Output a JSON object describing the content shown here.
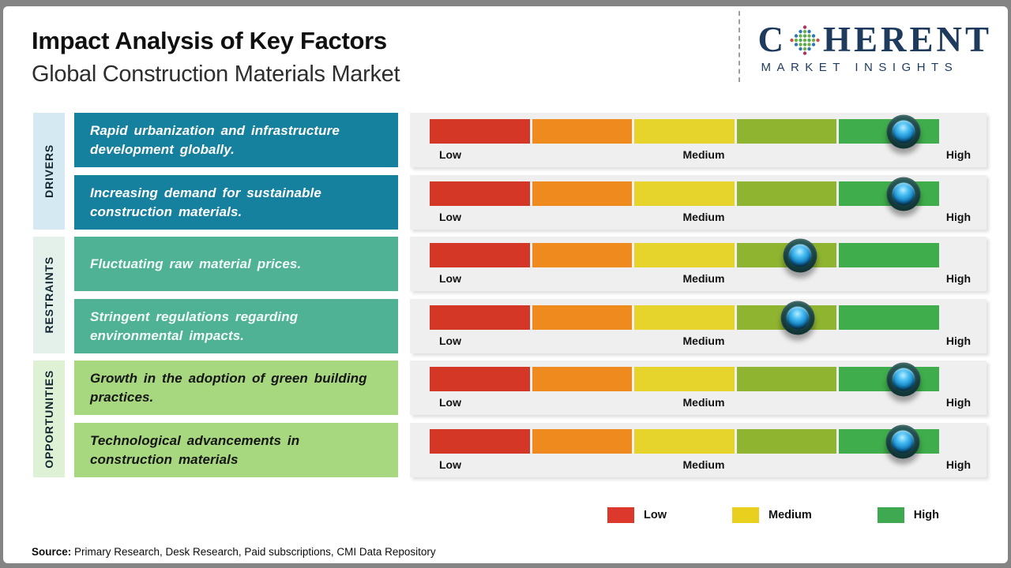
{
  "header": {
    "title": "Impact Analysis of Key Factors",
    "subtitle": "Global Construction Materials Market"
  },
  "logo": {
    "brand_prefix": "C",
    "brand_suffix": "HERENT",
    "tagline": "MARKET INSIGHTS",
    "brand_color": "#1e3a5c"
  },
  "groups": [
    {
      "label": "DRIVERS",
      "box_color": "#16809f",
      "strip_color": "#d5e9f3",
      "text_color": "#ffffff",
      "factors": [
        "Rapid urbanization and infrastructure development globally.",
        "Increasing demand for sustainable construction materials."
      ]
    },
    {
      "label": "RESTRAINTS",
      "box_color": "#4fb294",
      "strip_color": "#e3f1ea",
      "text_color": "#f2faf7",
      "factors": [
        "Fluctuating raw material prices.",
        "Stringent regulations regarding environmental impacts."
      ]
    },
    {
      "label": "OPPORTUNITIES",
      "box_color": "#a7d77e",
      "strip_color": "#def1d5",
      "text_color": "#151515",
      "factors": [
        "Growth in the adoption of green building practices.",
        "Technological advancements in construction materials"
      ]
    }
  ],
  "scale": {
    "low": "Low",
    "medium": "Medium",
    "high": "High"
  },
  "legend": {
    "items": [
      {
        "label": "Low",
        "color": "#dd382c"
      },
      {
        "label": "Medium",
        "color": "#e9d01f"
      },
      {
        "label": "High",
        "color": "#3ea951"
      }
    ]
  },
  "footer": {
    "source_label": "Source:",
    "source_text": " Primary Research, Desk Research, Paid subscriptions, CMI Data Repository"
  },
  "chart_data": {
    "type": "bar",
    "title": "Impact Analysis of Key Factors",
    "subtitle": "Global Construction Materials Market",
    "scale_labels": [
      "Low",
      "Medium",
      "High"
    ],
    "segment_colors": [
      "#d53727",
      "#ef8a1f",
      "#e6d32b",
      "#8fb430",
      "#3fad4b"
    ],
    "categories": [
      "Rapid urbanization and infrastructure development globally.",
      "Increasing demand for sustainable construction materials.",
      "Fluctuating raw material prices.",
      "Stringent regulations regarding environmental impacts.",
      "Growth in the adoption of green building practices.",
      "Technological advancements in construction materials"
    ],
    "category_groups": [
      "Drivers",
      "Drivers",
      "Restraints",
      "Restraints",
      "Opportunities",
      "Opportunities"
    ],
    "values": [
      0.93,
      0.93,
      0.727,
      0.722,
      0.93,
      0.928
    ],
    "impact_levels": [
      "High",
      "High",
      "Medium-High",
      "Medium-High",
      "High",
      "High"
    ],
    "xlim": [
      0,
      1
    ],
    "legend_position": "bottom"
  }
}
